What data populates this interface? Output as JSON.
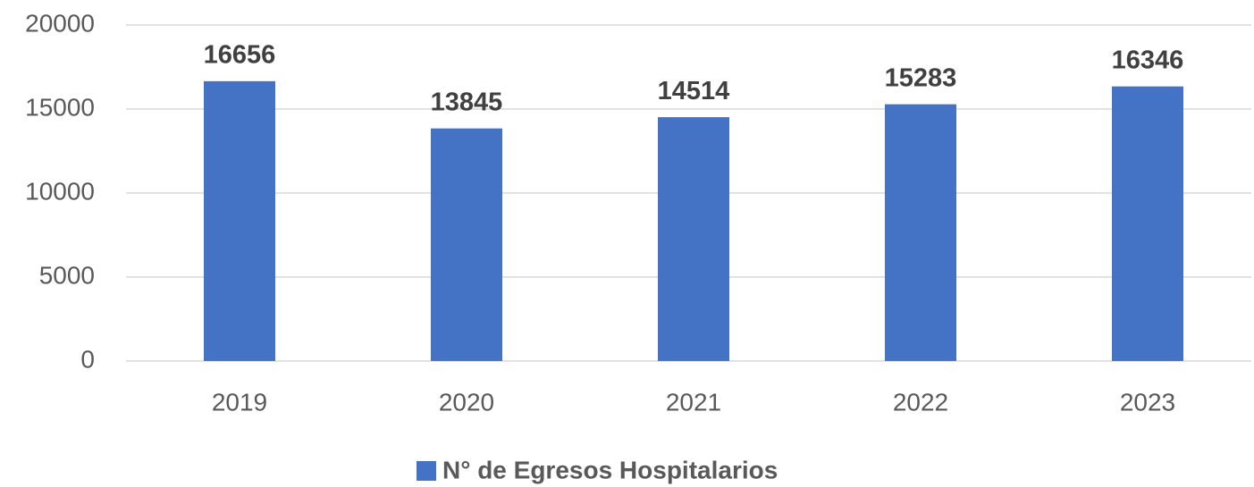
{
  "chart_data": {
    "type": "bar",
    "categories": [
      "2019",
      "2020",
      "2021",
      "2022",
      "2023"
    ],
    "series": [
      {
        "name": "N° de Egresos Hospitalarios",
        "color": "#4472c4",
        "values": [
          16656,
          13845,
          14514,
          15283,
          16346
        ]
      }
    ],
    "ylim": [
      0,
      20000
    ],
    "yticks": [
      0,
      5000,
      10000,
      15000,
      20000
    ],
    "grid": true,
    "legend": "bottom"
  }
}
